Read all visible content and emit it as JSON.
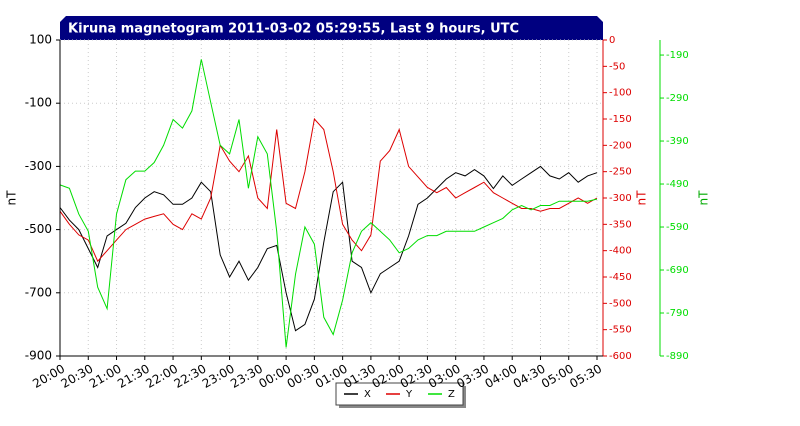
{
  "chart_data": {
    "type": "line",
    "title": "Kiruna magnetogram 2011-03-02 05:29:55, Last 9 hours, UTC",
    "y_label": "nT",
    "y2_label": "nT",
    "y3_label": "nT",
    "categories": [
      "20:00",
      null,
      null,
      "20:30",
      null,
      null,
      "21:00",
      null,
      null,
      "21:30",
      null,
      null,
      "22:00",
      null,
      null,
      "22:30",
      null,
      null,
      "23:00",
      null,
      null,
      "23:30",
      null,
      null,
      "00:00",
      null,
      null,
      "00:30",
      null,
      null,
      "01:00",
      null,
      null,
      "01:30",
      null,
      null,
      "02:00",
      null,
      null,
      "02:30",
      null,
      null,
      "03:00",
      null,
      null,
      "03:30",
      null,
      null,
      "04:00",
      null,
      null,
      "04:30",
      null,
      null,
      "05:00",
      null,
      null,
      "05:30"
    ],
    "ylim": [
      -900,
      100
    ],
    "yticks": [
      100,
      -100,
      -300,
      -500,
      -700,
      -900
    ],
    "y2lim": [
      -600,
      0
    ],
    "y2ticks": [
      0,
      -50,
      -100,
      -150,
      -200,
      -250,
      -300,
      -350,
      -400,
      -450,
      -500,
      -550,
      -600
    ],
    "y3lim": [
      -890,
      -155
    ],
    "y3ticks": [
      -190,
      -290,
      -390,
      -490,
      -590,
      -690,
      -790,
      -890
    ],
    "grid": true,
    "legend": "bottom",
    "series": [
      {
        "name": "X",
        "color": "#000000",
        "axis": "y",
        "values": [
          -430,
          -470,
          -500,
          -560,
          -620,
          -520,
          -500,
          -480,
          -430,
          -400,
          -380,
          -390,
          -420,
          -420,
          -400,
          -350,
          -380,
          -580,
          -650,
          -600,
          -660,
          -620,
          -560,
          -550,
          -700,
          -820,
          -800,
          -720,
          -540,
          -380,
          -350,
          -600,
          -620,
          -700,
          -640,
          -620,
          -600,
          -520,
          -420,
          -400,
          -370,
          -340,
          -320,
          -330,
          -310,
          -330,
          -370,
          -330,
          -360,
          -340,
          -320,
          -300,
          -330,
          -340,
          -320,
          -350,
          -330,
          -320
        ]
      },
      {
        "name": "Y",
        "color": "#dd0000",
        "axis": "y2",
        "values": [
          -325,
          -350,
          -370,
          -380,
          -420,
          -400,
          -380,
          -360,
          -350,
          -340,
          -335,
          -330,
          -350,
          -360,
          -330,
          -340,
          -300,
          -200,
          -230,
          -250,
          -220,
          -300,
          -320,
          -170,
          -310,
          -320,
          -250,
          -150,
          -170,
          -250,
          -350,
          -380,
          -400,
          -370,
          -230,
          -210,
          -170,
          -240,
          -260,
          -280,
          -290,
          -280,
          -300,
          -290,
          -280,
          -270,
          -290,
          -300,
          -310,
          -320,
          -320,
          -325,
          -320,
          -320,
          -310,
          -300,
          -310,
          -300
        ]
      },
      {
        "name": "Z",
        "color": "#00dd00",
        "axis": "y3",
        "values": [
          -492,
          -500,
          -560,
          -600,
          -730,
          -780,
          -560,
          -480,
          -460,
          -460,
          -440,
          -400,
          -340,
          -360,
          -320,
          -200,
          -300,
          -400,
          -420,
          -340,
          -500,
          -380,
          -420,
          -600,
          -870,
          -700,
          -590,
          -630,
          -800,
          -840,
          -760,
          -650,
          -600,
          -580,
          -600,
          -620,
          -650,
          -640,
          -620,
          -610,
          -610,
          -600,
          -600,
          -600,
          -600,
          -590,
          -580,
          -570,
          -550,
          -540,
          -550,
          -540,
          -540,
          -530,
          -530,
          -530,
          -530,
          -525
        ]
      }
    ]
  }
}
